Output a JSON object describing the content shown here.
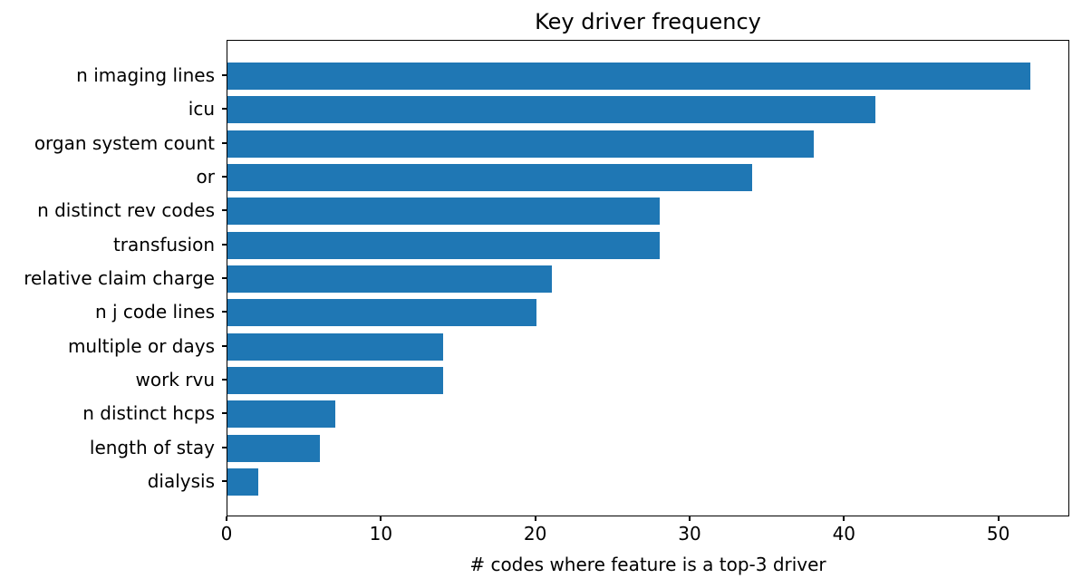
{
  "chart_data": {
    "type": "bar",
    "orientation": "horizontal",
    "title": "Key driver frequency",
    "xlabel": "# codes where feature is a top-3 driver",
    "ylabel": "",
    "categories": [
      "n imaging lines",
      "icu",
      "organ system count",
      "or",
      "n distinct rev codes",
      "transfusion",
      "relative claim charge",
      "n j code lines",
      "multiple or days",
      "work rvu",
      "n distinct hcps",
      "length of stay",
      "dialysis"
    ],
    "values": [
      52,
      42,
      38,
      34,
      28,
      28,
      21,
      20,
      14,
      14,
      7,
      6,
      2
    ],
    "xlim": [
      0,
      54.6
    ],
    "xticks": [
      0,
      10,
      20,
      30,
      40,
      50
    ],
    "bar_color": "#1f77b4",
    "axis_color": "#000000",
    "grid": false,
    "legend_position": "none"
  }
}
